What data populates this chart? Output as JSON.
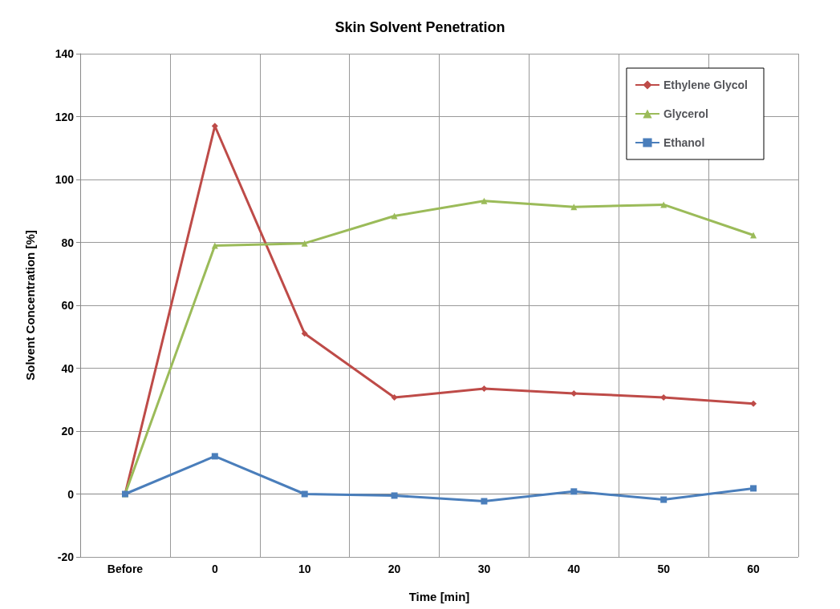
{
  "chart_data": {
    "type": "line",
    "title": "Skin Solvent Penetration",
    "xlabel": "Time [min]",
    "ylabel": "Solvent Concentration [%]",
    "categories": [
      "Before",
      "0",
      "10",
      "20",
      "30",
      "40",
      "50",
      "60"
    ],
    "series": [
      {
        "name": "Ethylene Glycol",
        "color": "#be4b48",
        "marker": "diamond",
        "values": [
          0,
          117,
          51,
          30.7,
          33.5,
          32,
          30.7,
          28.7
        ]
      },
      {
        "name": "Glycerol",
        "color": "#9bbb59",
        "marker": "triangle",
        "values": [
          0,
          79,
          79.7,
          88.4,
          93.2,
          91.3,
          92,
          82.3
        ]
      },
      {
        "name": "Ethanol",
        "color": "#4a7ebb",
        "marker": "square",
        "values": [
          0,
          12,
          0,
          -0.5,
          -2.3,
          0.8,
          -1.8,
          1.8
        ]
      }
    ],
    "ylim": [
      -20,
      140
    ],
    "yticks": [
      -20,
      0,
      20,
      40,
      60,
      80,
      100,
      120,
      140
    ],
    "grid": true,
    "legend": "top right",
    "line_style": "solid"
  }
}
